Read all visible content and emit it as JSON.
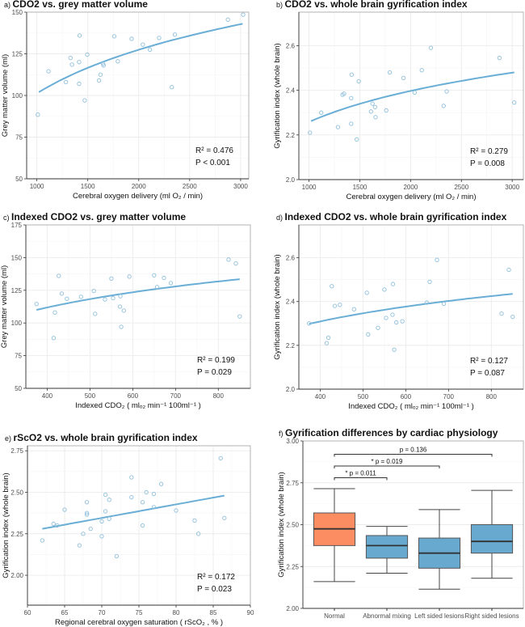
{
  "colors": {
    "point": "#8fbfdc",
    "fit": "#6aaed6",
    "normal_box": "#fc8d62",
    "other_box": "#67a9cf",
    "grid": "#ebebeb",
    "border": "#b3b3b3"
  },
  "chart_data": [
    {
      "type": "scatter",
      "panel_label": "a)",
      "title": "CDO2 vs. grey matter volume",
      "xlabel": "Cerebral oxygen delivery (ml O₂ / min)",
      "ylabel": "Grey matter volume (ml)",
      "xlim": [
        900,
        3080
      ],
      "ylim": [
        50,
        150
      ],
      "xticks": [
        1000,
        1500,
        2000,
        2500,
        3000
      ],
      "yticks": [
        50,
        75,
        100,
        125,
        150
      ],
      "fit": {
        "model": "log",
        "x": [
          1020,
          3020
        ],
        "y": [
          102,
          143
        ]
      },
      "r2_label": "R² = 0.476",
      "p_label": "P < 0.001",
      "x": [
        1010,
        1115,
        1285,
        1330,
        1345,
        1415,
        1415,
        1420,
        1470,
        1495,
        1610,
        1625,
        1650,
        1655,
        1760,
        1795,
        1930,
        2040,
        2110,
        2200,
        2325,
        2355,
        2875,
        3025
      ],
      "y": [
        88.5,
        114.5,
        108,
        122.5,
        118.5,
        120,
        107,
        136,
        97,
        124.5,
        109,
        112.5,
        119,
        118,
        135.5,
        120.5,
        134,
        130.5,
        127.5,
        134.5,
        105,
        136.5,
        145.5,
        148.5
      ]
    },
    {
      "type": "scatter",
      "panel_label": "b)",
      "title": "CDO2 vs. whole brain gyrification index",
      "xlabel": "Cerebral oxygen delivery (ml O₂ / min)",
      "ylabel": "Gyrification index (whole brain)",
      "xlim": [
        900,
        3110
      ],
      "ylim": [
        2.0,
        2.75
      ],
      "xticks": [
        1000,
        1500,
        2000,
        2500,
        3000
      ],
      "yticks": [
        2.0,
        2.2,
        2.4,
        2.6
      ],
      "fit": {
        "model": "log",
        "x": [
          1020,
          3020
        ],
        "y": [
          2.262,
          2.48
        ]
      },
      "r2_label": "R² = 0.279",
      "p_label": "P = 0.008",
      "x": [
        1010,
        1120,
        1285,
        1330,
        1345,
        1415,
        1415,
        1420,
        1470,
        1490,
        1610,
        1625,
        1650,
        1655,
        1760,
        1795,
        1930,
        2040,
        2110,
        2200,
        2325,
        2355,
        2875,
        3020
      ],
      "y": [
        2.21,
        2.3,
        2.235,
        2.38,
        2.385,
        2.365,
        2.25,
        2.47,
        2.18,
        2.44,
        2.305,
        2.34,
        2.325,
        2.28,
        2.31,
        2.48,
        2.455,
        2.39,
        2.49,
        2.59,
        2.33,
        2.395,
        2.545,
        2.345
      ]
    },
    {
      "type": "scatter",
      "panel_label": "c)",
      "title": "Indexed CDO2 vs. grey matter volume",
      "xlabel": "Indexed  CDO₂ ( mlₒ₂  min⁻¹ 100ml⁻¹ )",
      "ylabel": "Grey matter volume (ml)",
      "xlim": [
        350,
        875
      ],
      "ylim": [
        50,
        175
      ],
      "xticks": [
        400,
        500,
        600,
        700,
        800
      ],
      "yticks": [
        50,
        75,
        100,
        125,
        150,
        175
      ],
      "fit": {
        "model": "log",
        "x": [
          375,
          850
        ],
        "y": [
          110,
          133.5
        ]
      },
      "r2_label": "R² = 0.199",
      "p_label": "P = 0.029",
      "x": [
        375,
        415,
        418,
        427,
        434,
        446,
        479,
        509,
        512,
        535,
        550,
        554,
        570,
        571,
        573,
        579,
        592,
        650,
        657,
        673,
        689,
        824,
        841,
        850
      ],
      "y": [
        114.5,
        88.5,
        108,
        136,
        122.5,
        118.5,
        120,
        124.5,
        107,
        118,
        134,
        119,
        112.5,
        120.5,
        97,
        109.5,
        135.5,
        136.5,
        127.5,
        134.5,
        130.5,
        148.5,
        145.5,
        105
      ]
    },
    {
      "type": "scatter",
      "panel_label": "d)",
      "title": "Indexed CDO2 vs. whole brain gyrification index",
      "xlabel": "Indexed  CDO₂ ( mlₒ₂  min⁻¹ 100ml⁻¹ )",
      "ylabel": "Gyrification index (whole brain)",
      "xlim": [
        350,
        875
      ],
      "ylim": [
        2.0,
        2.75
      ],
      "xticks": [
        400,
        500,
        600,
        700,
        800
      ],
      "yticks": [
        2.0,
        2.2,
        2.4,
        2.6
      ],
      "fit": {
        "model": "log",
        "x": [
          374,
          850
        ],
        "y": [
          2.298,
          2.435
        ]
      },
      "r2_label": "R² = 0.127",
      "p_label": "P = 0.087",
      "x": [
        374,
        415,
        419,
        427,
        434,
        446,
        479,
        509,
        512,
        535,
        550,
        554,
        569,
        570,
        573,
        578,
        592,
        649,
        656,
        673,
        689,
        824,
        841,
        850
      ],
      "y": [
        2.3,
        2.21,
        2.235,
        2.47,
        2.38,
        2.385,
        2.365,
        2.44,
        2.25,
        2.28,
        2.455,
        2.325,
        2.34,
        2.48,
        2.18,
        2.305,
        2.31,
        2.395,
        2.49,
        2.59,
        2.39,
        2.345,
        2.545,
        2.33
      ]
    },
    {
      "type": "scatter",
      "panel_label": "e)",
      "title": "rScO2 vs. whole brain gyrification index",
      "xlabel": "Regional cerebral oxygen saturation ( rScO₂ , % )",
      "ylabel": "Gyrification index (whole brain)",
      "xlim": [
        60,
        90
      ],
      "ylim": [
        1.82,
        2.78
      ],
      "xticks": [
        60,
        65,
        70,
        75,
        80,
        85,
        90
      ],
      "yticks": [
        2.0,
        2.25,
        2.5,
        2.75
      ],
      "ytick_decimals": 2,
      "fit": {
        "model": "linear",
        "x": [
          62,
          86.5
        ],
        "y": [
          2.28,
          2.48
        ]
      },
      "r2_label": "R² = 0.172",
      "p_label": "P = 0.023",
      "x": [
        62,
        63.5,
        64,
        65,
        67,
        67.5,
        68,
        68,
        68,
        68.5,
        70,
        70,
        70.5,
        70.5,
        71,
        71,
        72,
        74,
        74,
        75.5,
        75.5,
        76,
        77,
        77,
        78,
        80,
        82.5,
        83,
        86,
        86.5
      ],
      "y": [
        2.21,
        2.31,
        2.3,
        2.395,
        2.18,
        2.25,
        2.44,
        2.375,
        2.365,
        2.28,
        2.325,
        2.235,
        2.485,
        2.385,
        2.455,
        2.34,
        2.115,
        2.59,
        2.47,
        2.44,
        2.3,
        2.5,
        2.49,
        2.41,
        2.55,
        2.39,
        2.33,
        2.25,
        2.705,
        2.345
      ]
    },
    {
      "type": "box",
      "panel_label": "f)",
      "title": "Gyrification differences by cardiac physiology",
      "ylabel": "Gyrification index (whole brain)",
      "ylim": [
        2.0,
        3.0
      ],
      "yticks": [
        2.0,
        2.25,
        2.5,
        2.75,
        3.0
      ],
      "categories": [
        "Normal",
        "Abnormal mixing",
        "Left sided lesions",
        "Right sided lesions"
      ],
      "boxes": [
        {
          "min": 2.16,
          "q1": 2.375,
          "median": 2.475,
          "q3": 2.57,
          "max": 2.715
        },
        {
          "min": 2.21,
          "q1": 2.3,
          "median": 2.375,
          "q3": 2.435,
          "max": 2.49
        },
        {
          "min": 2.115,
          "q1": 2.24,
          "median": 2.33,
          "q3": 2.42,
          "max": 2.59
        },
        {
          "min": 2.18,
          "q1": 2.33,
          "median": 2.4,
          "q3": 2.5,
          "max": 2.705
        }
      ],
      "comparisons": [
        {
          "from": 0,
          "to": 1,
          "y": 2.78,
          "label": "* p = 0.011"
        },
        {
          "from": 0,
          "to": 2,
          "y": 2.85,
          "label": "* p = 0.019"
        },
        {
          "from": 0,
          "to": 3,
          "y": 2.92,
          "label": "p = 0.136"
        }
      ]
    }
  ]
}
